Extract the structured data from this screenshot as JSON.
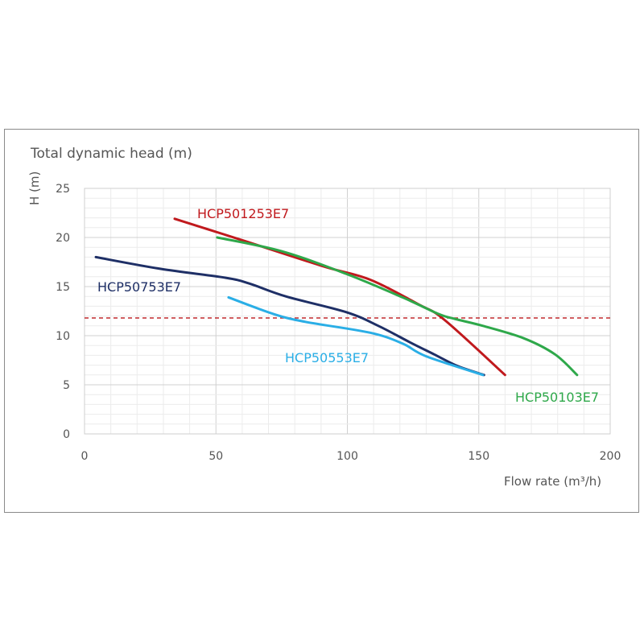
{
  "chart_data": {
    "type": "line",
    "title": "Total dynamic head (m)",
    "xlabel": "Flow rate (m³/h)",
    "ylabel": "H (m)",
    "xlim": [
      0,
      200
    ],
    "ylim": [
      0,
      25
    ],
    "xticks": [
      "0",
      "50",
      "100",
      "150",
      "200"
    ],
    "yticks": [
      "0",
      "5",
      "10",
      "15",
      "20",
      "25"
    ],
    "grid": true,
    "reference_line": {
      "y": 11.8,
      "style": "dashed",
      "color": "#c0282d"
    },
    "series": [
      {
        "name": "HCP501253E7",
        "color": "#c0191d",
        "points": [
          [
            34.3,
            21.9
          ],
          [
            59.7,
            19.75
          ],
          [
            90.4,
            17.1
          ],
          [
            108.7,
            15.7
          ],
          [
            127,
            13.2
          ],
          [
            137,
            11.6
          ],
          [
            160,
            6
          ]
        ]
      },
      {
        "name": "HCP50103E7",
        "color": "#2ea84a",
        "points": [
          [
            50.5,
            20
          ],
          [
            75,
            18.6
          ],
          [
            99.5,
            16.3
          ],
          [
            121,
            13.9
          ],
          [
            134.8,
            12.2
          ],
          [
            141,
            11.7
          ],
          [
            151.6,
            11
          ],
          [
            167,
            9.75
          ],
          [
            179,
            8.1
          ],
          [
            187.4,
            6
          ]
        ]
      },
      {
        "name": "HCP50753E7",
        "color": "#1e2f66",
        "points": [
          [
            4.3,
            18
          ],
          [
            29,
            16.8
          ],
          [
            53.6,
            15.9
          ],
          [
            62.8,
            15.3
          ],
          [
            76.6,
            14
          ],
          [
            99.5,
            12.4
          ],
          [
            111.8,
            11
          ],
          [
            124,
            9.3
          ],
          [
            133,
            8.1
          ],
          [
            142,
            6.9
          ],
          [
            152,
            6
          ]
        ]
      },
      {
        "name": "HCP50553E7",
        "color": "#2aaee6",
        "points": [
          [
            54.8,
            13.9
          ],
          [
            72,
            12.2
          ],
          [
            84.2,
            11.4
          ],
          [
            108.7,
            10.3
          ],
          [
            121,
            9.2
          ],
          [
            130,
            7.9
          ],
          [
            151.6,
            6
          ]
        ]
      }
    ]
  }
}
